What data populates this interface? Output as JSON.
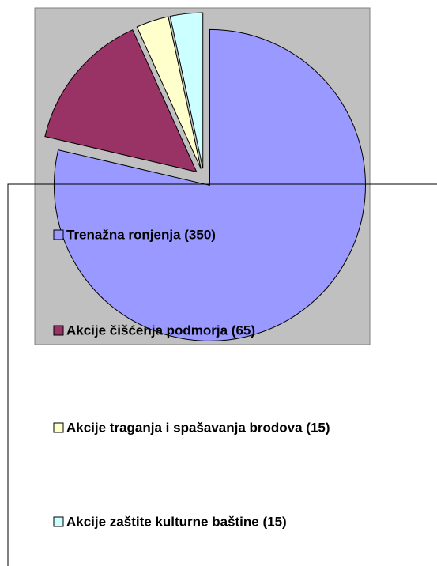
{
  "chart_data": {
    "type": "pie",
    "categories": [
      "Trenažna ronjenja (350)",
      "Akcije čišćenja podmorja (65)",
      "Akcije traganja i spašavanja brodova (15)",
      "Akcije zaštite kulturne baštine (15)"
    ],
    "values": [
      350,
      65,
      15,
      15
    ],
    "colors": [
      "#9999ff",
      "#993366",
      "#ffffcc",
      "#ccffff"
    ],
    "exploded": true
  }
}
